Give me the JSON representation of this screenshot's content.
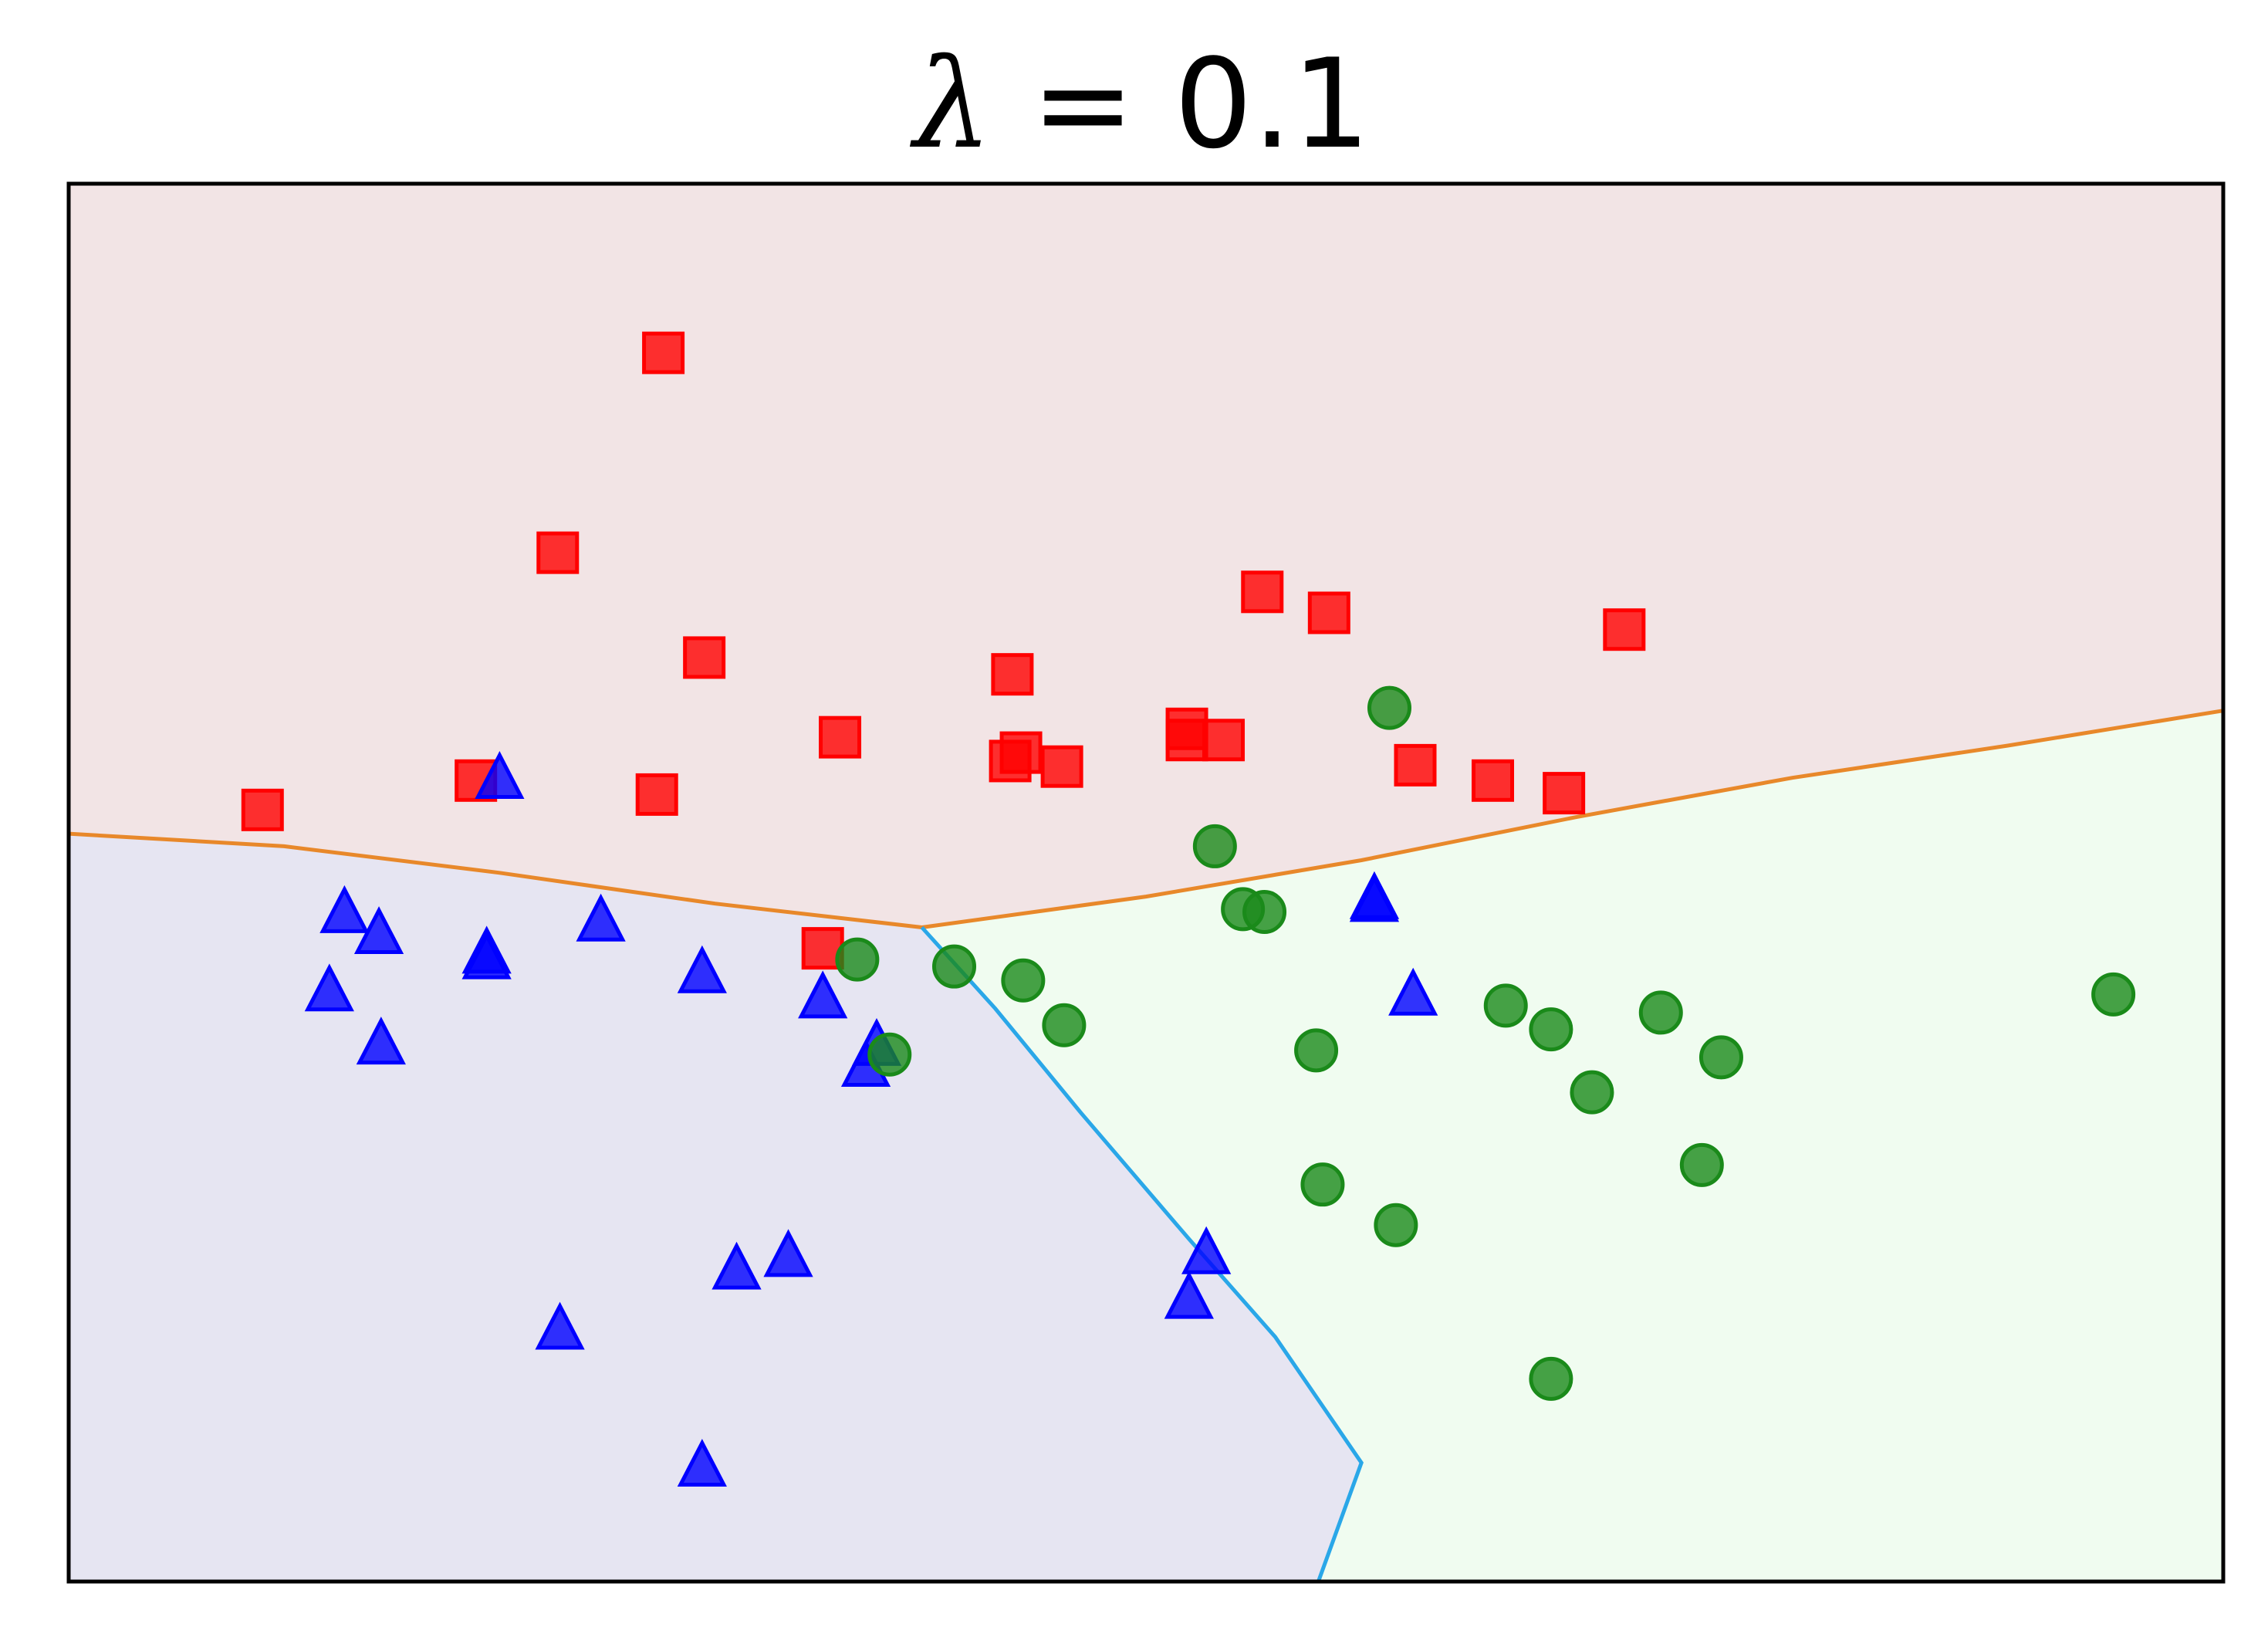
{
  "chart_data": {
    "type": "scatter",
    "title": "λ = 0.1",
    "title_symbol": "λ",
    "title_rest": " = 0.1",
    "xlabel": "",
    "ylabel": "",
    "xlim": [
      0,
      1
    ],
    "ylim": [
      0,
      1
    ],
    "grid": false,
    "ticks": false,
    "legend": "none",
    "regions": [
      {
        "class": "red",
        "fill": "#f2e4e5"
      },
      {
        "class": "blue",
        "fill": "#e6e5f2"
      },
      {
        "class": "green",
        "fill": "#f0fcf0"
      }
    ],
    "boundaries": {
      "triple_point": [
        0.396,
        0.468
      ],
      "red_blue": [
        [
          0.0,
          0.535
        ],
        [
          0.1,
          0.526
        ],
        [
          0.2,
          0.507
        ],
        [
          0.3,
          0.485
        ],
        [
          0.396,
          0.468
        ]
      ],
      "red_green": [
        [
          0.396,
          0.468
        ],
        [
          0.5,
          0.49
        ],
        [
          0.6,
          0.516
        ],
        [
          0.7,
          0.547
        ],
        [
          0.8,
          0.575
        ],
        [
          0.9,
          0.598
        ],
        [
          1.0,
          0.623
        ]
      ],
      "blue_green": [
        [
          0.396,
          0.468
        ],
        [
          0.43,
          0.41
        ],
        [
          0.47,
          0.335
        ],
        [
          0.52,
          0.245
        ],
        [
          0.56,
          0.175
        ],
        [
          0.6,
          0.085
        ],
        [
          0.58,
          0.0
        ]
      ],
      "colors": {
        "red_blue": "#e8882a",
        "red_green": "#e8882a",
        "blue_green": "#2aa7e8"
      }
    },
    "series": [
      {
        "name": "",
        "marker": "square",
        "color": "#ff0000",
        "points": [
          [
            0.276,
            0.879
          ],
          [
            0.227,
            0.736
          ],
          [
            0.295,
            0.661
          ],
          [
            0.09,
            0.552
          ],
          [
            0.189,
            0.573
          ],
          [
            0.273,
            0.563
          ],
          [
            0.358,
            0.604
          ],
          [
            0.438,
            0.649
          ],
          [
            0.442,
            0.593
          ],
          [
            0.437,
            0.587
          ],
          [
            0.461,
            0.583
          ],
          [
            0.519,
            0.61
          ],
          [
            0.519,
            0.602
          ],
          [
            0.536,
            0.602
          ],
          [
            0.554,
            0.708
          ],
          [
            0.585,
            0.693
          ],
          [
            0.722,
            0.681
          ],
          [
            0.625,
            0.584
          ],
          [
            0.661,
            0.573
          ],
          [
            0.694,
            0.564
          ],
          [
            0.35,
            0.453
          ]
        ]
      },
      {
        "name": "",
        "marker": "triangle",
        "color": "#0000ff",
        "points": [
          [
            0.2,
            0.574
          ],
          [
            0.128,
            0.478
          ],
          [
            0.144,
            0.463
          ],
          [
            0.121,
            0.422
          ],
          [
            0.145,
            0.384
          ],
          [
            0.194,
            0.449
          ],
          [
            0.194,
            0.445
          ],
          [
            0.247,
            0.472
          ],
          [
            0.294,
            0.435
          ],
          [
            0.35,
            0.417
          ],
          [
            0.375,
            0.383
          ],
          [
            0.37,
            0.368
          ],
          [
            0.31,
            0.223
          ],
          [
            0.334,
            0.232
          ],
          [
            0.228,
            0.18
          ],
          [
            0.294,
            0.082
          ],
          [
            0.606,
            0.488
          ],
          [
            0.606,
            0.486
          ],
          [
            0.624,
            0.419
          ],
          [
            0.528,
            0.234
          ],
          [
            0.52,
            0.202
          ]
        ]
      },
      {
        "name": "",
        "marker": "circle",
        "color": "#1a8a1a",
        "points": [
          [
            0.613,
            0.625
          ],
          [
            0.532,
            0.526
          ],
          [
            0.545,
            0.481
          ],
          [
            0.555,
            0.479
          ],
          [
            0.366,
            0.445
          ],
          [
            0.411,
            0.44
          ],
          [
            0.443,
            0.43
          ],
          [
            0.462,
            0.398
          ],
          [
            0.381,
            0.377
          ],
          [
            0.579,
            0.38
          ],
          [
            0.667,
            0.412
          ],
          [
            0.688,
            0.395
          ],
          [
            0.739,
            0.407
          ],
          [
            0.767,
            0.375
          ],
          [
            0.707,
            0.35
          ],
          [
            0.582,
            0.284
          ],
          [
            0.616,
            0.255
          ],
          [
            0.758,
            0.298
          ],
          [
            0.949,
            0.42
          ],
          [
            0.688,
            0.145
          ]
        ]
      }
    ]
  }
}
